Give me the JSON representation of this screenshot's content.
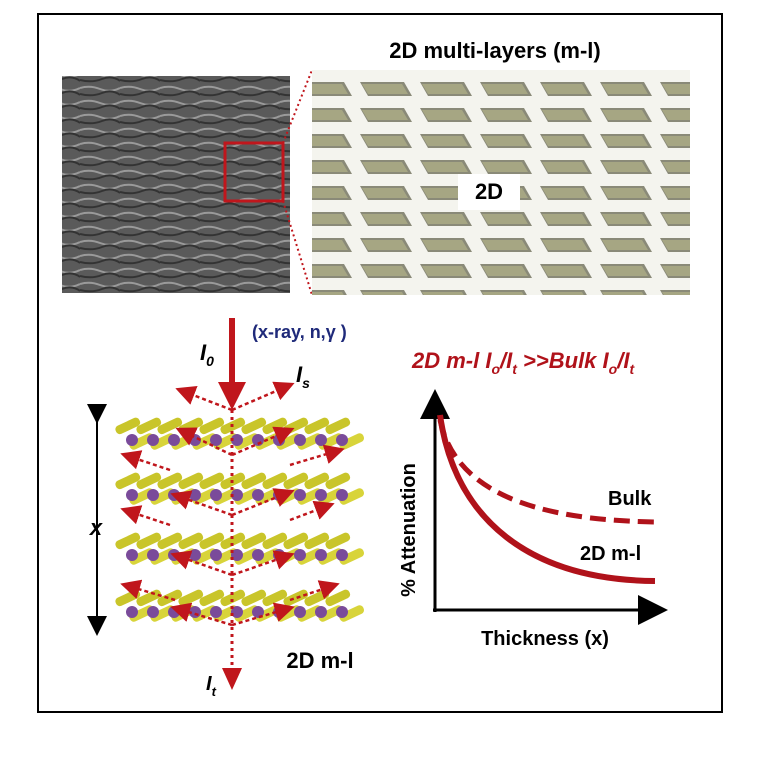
{
  "header": {
    "title": "2D multi-layers (m-l)"
  },
  "inset_label": "2D",
  "beam": {
    "incident": {
      "symbol": "I",
      "sub": "0"
    },
    "radiation": "(x-ray, n,γ )",
    "scattered": {
      "symbol": "I",
      "sub": "s"
    },
    "transmitted": {
      "symbol": "I",
      "sub": "t"
    },
    "thickness": "x"
  },
  "sample_label": "2D m-l",
  "plot": {
    "title": [
      {
        "text": "2D m-l I"
      },
      {
        "sub": "o"
      },
      {
        "text": "/I"
      },
      {
        "sub": "t"
      },
      {
        "text": " >>Bulk I"
      },
      {
        "sub": "o"
      },
      {
        "text": "/I"
      },
      {
        "sub": "t"
      }
    ],
    "y_label": "% Attenuation",
    "x_label": "Thickness (x)",
    "curves": [
      "Bulk",
      "2D m-l"
    ]
  }
}
